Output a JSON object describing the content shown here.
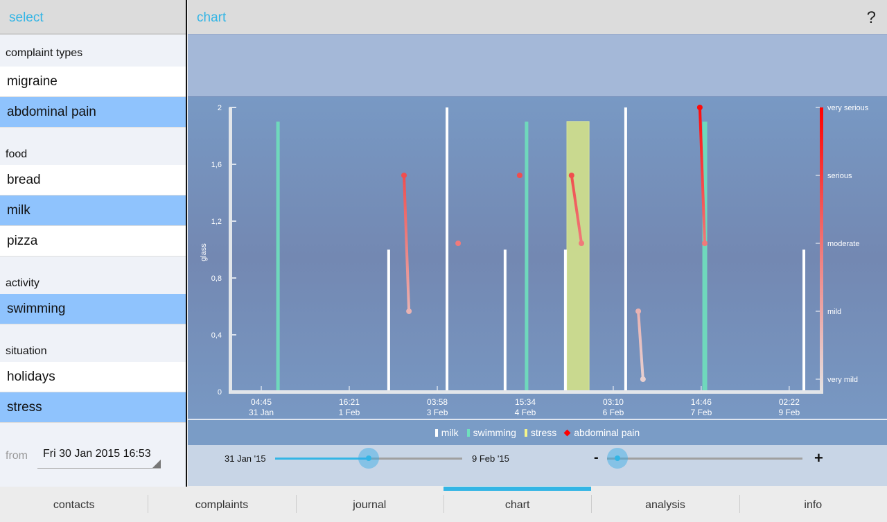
{
  "left": {
    "title": "select",
    "groups": [
      {
        "label": "complaint types",
        "items": [
          {
            "label": "migraine",
            "selected": false
          },
          {
            "label": "abdominal pain",
            "selected": true
          }
        ]
      },
      {
        "label": "food",
        "items": [
          {
            "label": "bread",
            "selected": false
          },
          {
            "label": "milk",
            "selected": true
          },
          {
            "label": "pizza",
            "selected": false
          }
        ]
      },
      {
        "label": "activity",
        "items": [
          {
            "label": "swimming",
            "selected": true
          }
        ]
      },
      {
        "label": "situation",
        "items": [
          {
            "label": "holidays",
            "selected": false
          },
          {
            "label": "stress",
            "selected": true
          }
        ]
      }
    ],
    "from_label": "from",
    "from_value": "Fri 30 Jan 2015 16:53"
  },
  "header": {
    "title": "chart",
    "help": "?"
  },
  "legend": [
    {
      "label": "milk",
      "color": "#ffffff"
    },
    {
      "label": "swimming",
      "color": "#6fe0bd"
    },
    {
      "label": "stress",
      "color": "#f5f58a"
    },
    {
      "label": "abdominal pain",
      "color": "#ff0000",
      "marker": "diamond"
    }
  ],
  "sliders": {
    "range_start": "31 Jan '15",
    "range_end": "9 Feb '15",
    "range_value": 0.5,
    "zoom_minus": "-",
    "zoom_plus": "+",
    "zoom_value": 0.0
  },
  "tabs": [
    {
      "label": "contacts"
    },
    {
      "label": "complaints"
    },
    {
      "label": "journal"
    },
    {
      "label": "chart",
      "active": true
    },
    {
      "label": "analysis"
    },
    {
      "label": "info"
    }
  ],
  "chart_data": {
    "type": "bar",
    "x_unit": "hours since 31 Jan 00:00",
    "xlim": [
      -7.6,
      231.3
    ],
    "x_ticks": [
      {
        "x": 4.75,
        "time": "04:45",
        "date": "31 Jan"
      },
      {
        "x": 40.35,
        "time": "16:21",
        "date": "1 Feb"
      },
      {
        "x": 75.97,
        "time": "03:58",
        "date": "3 Feb"
      },
      {
        "x": 111.57,
        "time": "15:34",
        "date": "4 Feb"
      },
      {
        "x": 147.17,
        "time": "03:10",
        "date": "6 Feb"
      },
      {
        "x": 182.77,
        "time": "14:46",
        "date": "7 Feb"
      },
      {
        "x": 218.37,
        "time": "02:22",
        "date": "9 Feb"
      }
    ],
    "ylabel": "glass",
    "ylim": [
      0,
      2
    ],
    "y_ticks": [
      "0",
      "0,4",
      "0,8",
      "1,2",
      "1,6",
      "2"
    ],
    "y2_ticks": [
      "very mild",
      "mild",
      "moderate",
      "serious",
      "very serious"
    ],
    "series": [
      {
        "name": "milk",
        "color": "#ffffff",
        "points": [
          {
            "x": 56.3,
            "y": 1.0
          },
          {
            "x": 79.9,
            "y": 2.0
          },
          {
            "x": 103.4,
            "y": 1.0
          },
          {
            "x": 127.8,
            "y": 1.0
          },
          {
            "x": 152.2,
            "y": 2.0
          },
          {
            "x": 224.3,
            "y": 1.0
          }
        ]
      },
      {
        "name": "swimming",
        "color": "#6fd8bc",
        "points": [
          {
            "x": 11.5,
            "y": 1.9
          },
          {
            "x": 112.1,
            "y": 1.9
          },
          {
            "x": 184.2,
            "y": 1.9
          }
        ]
      },
      {
        "name": "stress",
        "color": "#c9d98f",
        "spans": [
          {
            "x0": 128.4,
            "x1": 137.4,
            "y": 1.9
          }
        ]
      },
      {
        "name": "abdominal pain",
        "axis": "severity",
        "episodes": [
          [
            {
              "x": 62.5,
              "s": 3
            },
            {
              "x": 64.5,
              "s": 1
            }
          ],
          [
            {
              "x": 84.4,
              "s": 2
            }
          ],
          [
            {
              "x": 109.3,
              "s": 3
            }
          ],
          [
            {
              "x": 130.3,
              "s": 3
            },
            {
              "x": 134.3,
              "s": 2
            }
          ],
          [
            {
              "x": 157.3,
              "s": 1
            },
            {
              "x": 159.2,
              "s": 0
            }
          ],
          [
            {
              "x": 182.2,
              "s": 4
            },
            {
              "x": 184.2,
              "s": 2
            }
          ]
        ]
      }
    ]
  }
}
